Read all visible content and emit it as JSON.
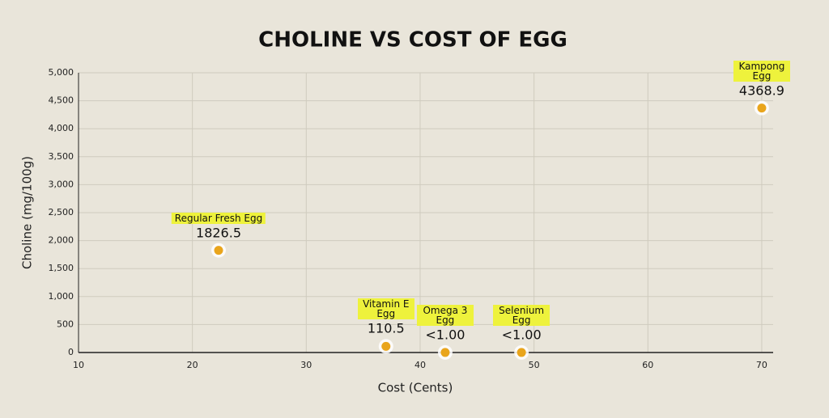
{
  "chart_data": {
    "type": "scatter",
    "title": "CHOLINE VS COST OF EGG",
    "x_label": "Cost (Cents)",
    "y_label": "Choline (mg/100g)",
    "labels": [
      "Regular Fresh Egg",
      "Vitamin E Egg",
      "Omega 3 Egg",
      "Selenium Egg",
      "Kampong Egg"
    ],
    "x": [
      22.3,
      37,
      42.2,
      48.9,
      70
    ],
    "values": [
      1826.5,
      110.5,
      1,
      1,
      4368.9
    ],
    "value_labels": [
      "1826.5",
      "110.5",
      "<1.00",
      "<1.00",
      "4368.9"
    ],
    "color": "#e9a51c",
    "xlim": [
      10,
      71
    ],
    "xticks": [
      10,
      20,
      30,
      40,
      50,
      60,
      70
    ],
    "ylim": [
      0,
      5000
    ],
    "yticks": [
      0,
      500,
      {
        "value": 1000,
        "label": "1,000"
      },
      {
        "value": 1500,
        "label": "1,500"
      },
      {
        "value": 2000,
        "label": "2,000"
      },
      {
        "value": 2500,
        "label": "2,500"
      },
      {
        "value": 3000,
        "label": "3,000"
      },
      {
        "value": 3500,
        "label": "3,500"
      },
      {
        "value": 4000,
        "label": "4,000"
      },
      {
        "value": 4500,
        "label": "4,500"
      },
      {
        "value": 5000,
        "label": "5,000"
      }
    ],
    "grid": true
  }
}
